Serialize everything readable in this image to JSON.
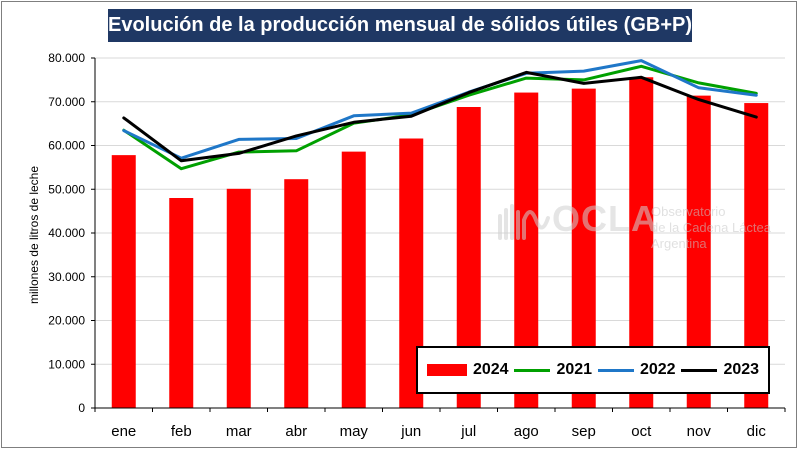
{
  "title": "Evolución de la producción mensual de sólidos útiles (GB+P)",
  "watermark": {
    "logo_text": "OCLA",
    "lines": [
      "Observatorio",
      "de la Cadena Láctea",
      "Argentina"
    ]
  },
  "colors": {
    "bar_2024": "#ff0000",
    "line_2021": "#00a000",
    "line_2022": "#1f77c8",
    "line_2023": "#000000",
    "title_bg": "#1f3864"
  },
  "chart_data": {
    "type": "bar",
    "title": "Evolución de la producción mensual de sólidos útiles (GB+P)",
    "xlabel": "",
    "ylabel": "millones de litros de leche",
    "ylim": [
      0,
      80000
    ],
    "yticks": [
      0,
      10000,
      20000,
      30000,
      40000,
      50000,
      60000,
      70000,
      80000
    ],
    "ytick_labels": [
      "0",
      "10.000",
      "20.000",
      "30.000",
      "40.000",
      "50.000",
      "60.000",
      "70.000",
      "80.000"
    ],
    "categories": [
      "ene",
      "feb",
      "mar",
      "abr",
      "may",
      "jun",
      "jul",
      "ago",
      "sep",
      "oct",
      "nov",
      "dic"
    ],
    "legend_position": "bottom-right",
    "series": [
      {
        "name": "2024",
        "kind": "bar",
        "values": [
          57800,
          48000,
          50100,
          52300,
          58600,
          61600,
          68800,
          72100,
          73000,
          75600,
          71400,
          69700
        ]
      },
      {
        "name": "2021",
        "kind": "line",
        "values": [
          63500,
          54700,
          58500,
          58800,
          65100,
          67000,
          71500,
          75400,
          75000,
          78100,
          74300,
          71900
        ]
      },
      {
        "name": "2022",
        "kind": "line",
        "values": [
          63400,
          57100,
          61400,
          61600,
          66800,
          67400,
          72200,
          76500,
          77000,
          79400,
          73200,
          71500
        ]
      },
      {
        "name": "2023",
        "kind": "line",
        "values": [
          66300,
          56500,
          58200,
          62200,
          65300,
          66700,
          72100,
          76700,
          74200,
          75600,
          70500,
          66500
        ]
      }
    ]
  }
}
